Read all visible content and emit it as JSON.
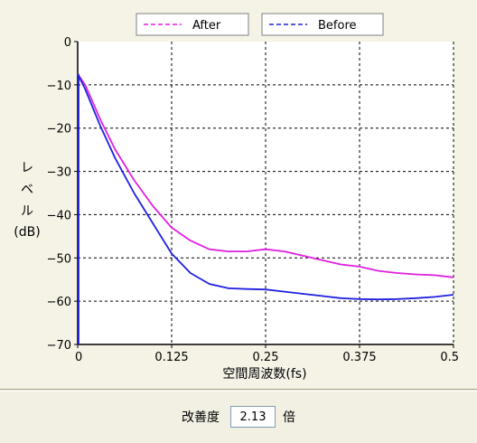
{
  "chart_data": {
    "type": "line",
    "xlabel": "空間周波数(fs)",
    "ylabel_lines": [
      "レ",
      "ベ",
      "ル",
      "(dB)"
    ],
    "xlim": [
      0,
      0.5
    ],
    "ylim": [
      -70,
      0
    ],
    "x_ticks": [
      {
        "value": 0,
        "label": "0"
      },
      {
        "value": 0.125,
        "label": "0.125"
      },
      {
        "value": 0.25,
        "label": "0.25"
      },
      {
        "value": 0.375,
        "label": "0.375"
      },
      {
        "value": 0.5,
        "label": "0.5"
      }
    ],
    "y_ticks": [
      {
        "value": 0,
        "label": "0"
      },
      {
        "value": -10,
        "label": "−10"
      },
      {
        "value": -20,
        "label": "−20"
      },
      {
        "value": -30,
        "label": "−30"
      },
      {
        "value": -40,
        "label": "−40"
      },
      {
        "value": -50,
        "label": "−50"
      },
      {
        "value": -60,
        "label": "−60"
      },
      {
        "value": -70,
        "label": "−70"
      }
    ],
    "grid": true,
    "legend_position": "top",
    "series": [
      {
        "name": "After",
        "color": "#e020e0",
        "x": [
          0,
          0.01,
          0.03,
          0.05,
          0.075,
          0.1,
          0.125,
          0.15,
          0.175,
          0.2,
          0.225,
          0.25,
          0.275,
          0.3,
          0.325,
          0.35,
          0.375,
          0.4,
          0.425,
          0.45,
          0.475,
          0.5
        ],
        "y": [
          -7.5,
          -10,
          -18,
          -25,
          -32,
          -38,
          -43,
          -46,
          -48,
          -48.5,
          -48.5,
          -48,
          -48.5,
          -49.5,
          -50.5,
          -51.5,
          -52,
          -53,
          -53.5,
          -53.8,
          -54,
          -54.5
        ]
      },
      {
        "name": "Before",
        "color": "#2020e0",
        "x": [
          0,
          0.01,
          0.03,
          0.05,
          0.075,
          0.1,
          0.125,
          0.15,
          0.175,
          0.2,
          0.225,
          0.25,
          0.275,
          0.3,
          0.325,
          0.35,
          0.375,
          0.4,
          0.425,
          0.45,
          0.475,
          0.5
        ],
        "y": [
          -7.5,
          -11,
          -19.5,
          -27,
          -35,
          -42,
          -49,
          -53.5,
          -56,
          -57,
          -57.2,
          -57.3,
          -57.8,
          -58.3,
          -58.8,
          -59.3,
          -59.5,
          -59.6,
          -59.5,
          -59.3,
          -59,
          -58.5
        ]
      }
    ]
  },
  "improvement": {
    "label": "改善度",
    "value": "2.13",
    "unit": "倍"
  }
}
